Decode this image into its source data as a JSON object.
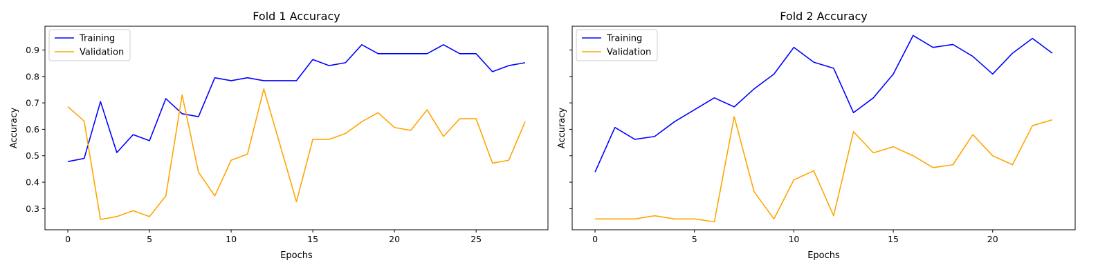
{
  "chart_data": [
    {
      "type": "line",
      "title": "Fold 1 Accuracy",
      "xlabel": "Epochs",
      "ylabel": "Accuracy",
      "xlim": [
        -1.4,
        29.4
      ],
      "ylim": [
        0.22,
        0.99
      ],
      "xticks": [
        0,
        5,
        10,
        15,
        20,
        25
      ],
      "yticks": [
        0.3,
        0.4,
        0.5,
        0.6,
        0.7,
        0.8,
        0.9
      ],
      "legend_position": "upper-left",
      "series": [
        {
          "name": "Training",
          "color": "#0000ff",
          "x": [
            0,
            1,
            2,
            3,
            4,
            5,
            6,
            7,
            8,
            9,
            10,
            11,
            12,
            13,
            14,
            15,
            16,
            17,
            18,
            19,
            20,
            21,
            22,
            23,
            24,
            25,
            26,
            27,
            28
          ],
          "values": [
            0.478,
            0.49,
            0.705,
            0.512,
            0.58,
            0.557,
            0.716,
            0.659,
            0.648,
            0.795,
            0.784,
            0.795,
            0.784,
            0.784,
            0.784,
            0.864,
            0.841,
            0.852,
            0.92,
            0.886,
            0.886,
            0.886,
            0.886,
            0.92,
            0.886,
            0.886,
            0.818,
            0.841,
            0.852
          ]
        },
        {
          "name": "Validation",
          "color": "#ffa500",
          "x": [
            0,
            1,
            2,
            3,
            4,
            5,
            6,
            7,
            8,
            9,
            10,
            11,
            12,
            13,
            14,
            15,
            16,
            17,
            18,
            19,
            20,
            21,
            22,
            23,
            24,
            25,
            26,
            27,
            28
          ],
          "values": [
            0.686,
            0.631,
            0.259,
            0.27,
            0.292,
            0.27,
            0.348,
            0.73,
            0.438,
            0.348,
            0.483,
            0.506,
            0.753,
            0.54,
            0.326,
            0.562,
            0.562,
            0.584,
            0.629,
            0.663,
            0.607,
            0.596,
            0.674,
            0.573,
            0.64,
            0.64,
            0.472,
            0.483,
            0.629
          ]
        }
      ]
    },
    {
      "type": "line",
      "title": "Fold 2 Accuracy",
      "xlabel": "Epochs",
      "ylabel": "Accuracy",
      "xlim": [
        -1.15,
        24.15
      ],
      "ylim": [
        0.22,
        0.99
      ],
      "xticks": [
        0,
        5,
        10,
        15,
        20
      ],
      "yticks": [
        0.3,
        0.4,
        0.5,
        0.6,
        0.7,
        0.8,
        0.9
      ],
      "legend_position": "upper-left",
      "series": [
        {
          "name": "Training",
          "color": "#0000ff",
          "x": [
            0,
            1,
            2,
            3,
            4,
            5,
            6,
            7,
            8,
            9,
            10,
            11,
            12,
            13,
            14,
            15,
            16,
            17,
            18,
            19,
            20,
            21,
            22,
            23
          ],
          "values": [
            0.438,
            0.607,
            0.562,
            0.573,
            0.629,
            0.674,
            0.719,
            0.685,
            0.753,
            0.809,
            0.91,
            0.854,
            0.831,
            0.663,
            0.719,
            0.809,
            0.955,
            0.91,
            0.921,
            0.876,
            0.809,
            0.888,
            0.944,
            0.888
          ]
        },
        {
          "name": "Validation",
          "color": "#ffa500",
          "x": [
            0,
            1,
            2,
            3,
            4,
            5,
            6,
            7,
            8,
            9,
            10,
            11,
            12,
            13,
            14,
            15,
            16,
            17,
            18,
            19,
            20,
            21,
            22,
            23
          ],
          "values": [
            0.261,
            0.261,
            0.261,
            0.273,
            0.261,
            0.261,
            0.25,
            0.648,
            0.364,
            0.261,
            0.409,
            0.443,
            0.273,
            0.591,
            0.511,
            0.534,
            0.5,
            0.455,
            0.466,
            0.58,
            0.5,
            0.466,
            0.614,
            0.636
          ]
        }
      ]
    }
  ]
}
